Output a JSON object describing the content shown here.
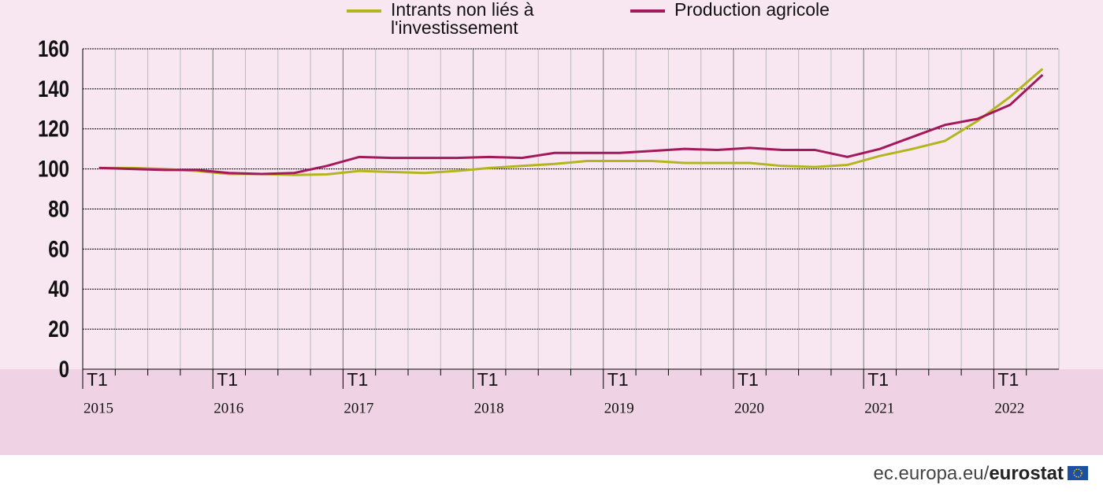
{
  "chart_data": {
    "type": "line",
    "categories": [
      "T1",
      null,
      null,
      null,
      "T1",
      null,
      null,
      null,
      "T1",
      null,
      null,
      null,
      "T1",
      null,
      null,
      null,
      "T1",
      null,
      null,
      null,
      "T1",
      null,
      null,
      null,
      "T1",
      null,
      null,
      null,
      "T1",
      null
    ],
    "years": [
      "2015",
      "2016",
      "2017",
      "2018",
      "2019",
      "2020",
      "2021",
      "2022"
    ],
    "series": [
      {
        "name": "Intrants non liés à l'investissement",
        "color": "#b3b51f",
        "values": [
          100.5,
          100.5,
          100,
          99,
          97.5,
          97.5,
          97,
          97.3,
          99,
          98.5,
          98,
          99,
          100.5,
          101.5,
          102.5,
          104,
          104,
          104,
          103,
          103,
          103,
          101.5,
          101,
          102,
          106.5,
          110,
          114,
          124,
          136,
          150
        ]
      },
      {
        "name": "Production agricole",
        "color": "#a3195b",
        "values": [
          100.5,
          100,
          99.5,
          99.5,
          98,
          97.5,
          98,
          101.5,
          106,
          105.5,
          105.5,
          105.5,
          106,
          105.5,
          108,
          108,
          108,
          109,
          110,
          109.5,
          110.5,
          109.5,
          109.5,
          106,
          110,
          116,
          122,
          125,
          132,
          147
        ]
      }
    ],
    "ylim": [
      0,
      160
    ],
    "yticks": [
      0,
      20,
      40,
      60,
      80,
      100,
      120,
      140,
      160
    ],
    "grid": true,
    "footer": "ec.europa.eu/",
    "brand": "eurostat"
  }
}
